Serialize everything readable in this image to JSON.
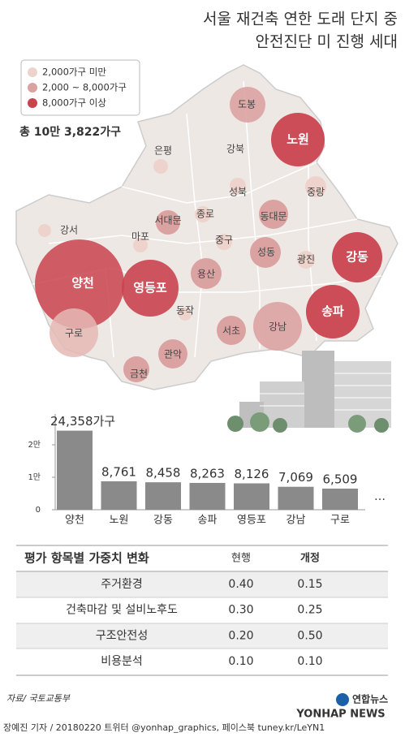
{
  "title": [
    "서울 재건축 연한 도래 단지 중",
    "안전진단 미 진행 세대"
  ],
  "map": {
    "legend": [
      "2,000가구 미만",
      "2,000 ~ 8,000가구",
      "8,000가구 이상"
    ],
    "total": "총 10만 3,822가구",
    "districts": [
      "도봉",
      "노원",
      "은평",
      "강북",
      "성북",
      "중랑",
      "강서",
      "서대문",
      "종로",
      "동대문",
      "마포",
      "중구",
      "성동",
      "광진",
      "강동",
      "양천",
      "영등포",
      "용산",
      "송파",
      "동작",
      "강남",
      "서초",
      "구로",
      "관악",
      "금천"
    ]
  },
  "chart_data": {
    "type": "bar",
    "categories": [
      "양천",
      "노원",
      "강동",
      "송파",
      "영등포",
      "강남",
      "구로"
    ],
    "values": [
      24358,
      8761,
      8458,
      8263,
      8126,
      7069,
      6509
    ],
    "value_labels": [
      "24,358가구",
      "8,761",
      "8,458",
      "8,263",
      "8,126",
      "7,069",
      "6,509"
    ],
    "color": "#8a8a8a",
    "ylim": [
      0,
      29500
    ],
    "yticks": [
      0,
      {
        "value": 10000,
        "label": "1만"
      },
      {
        "value": 20000,
        "label": "2만"
      }
    ],
    "continuation": "…"
  },
  "table": {
    "header": [
      "평가 항목별 가중치 변화",
      "현행",
      "개정"
    ],
    "rows": [
      [
        "주거환경",
        "0.40",
        "0.15"
      ],
      [
        "건축마감 및 설비노후도",
        "0.30",
        "0.25"
      ],
      [
        "구조안전성",
        "0.20",
        "0.50"
      ],
      [
        "비용분석",
        "0.10",
        "0.10"
      ]
    ]
  },
  "footer": {
    "source": "자료/ 국토교통부",
    "credit": "장예진 기자 / 20180220 트위터 @yonhap_graphics, 페이스북 tuney.kr/LeYN1",
    "logo": "연합뉴스",
    "watermark": "YONHAP NEWS"
  }
}
